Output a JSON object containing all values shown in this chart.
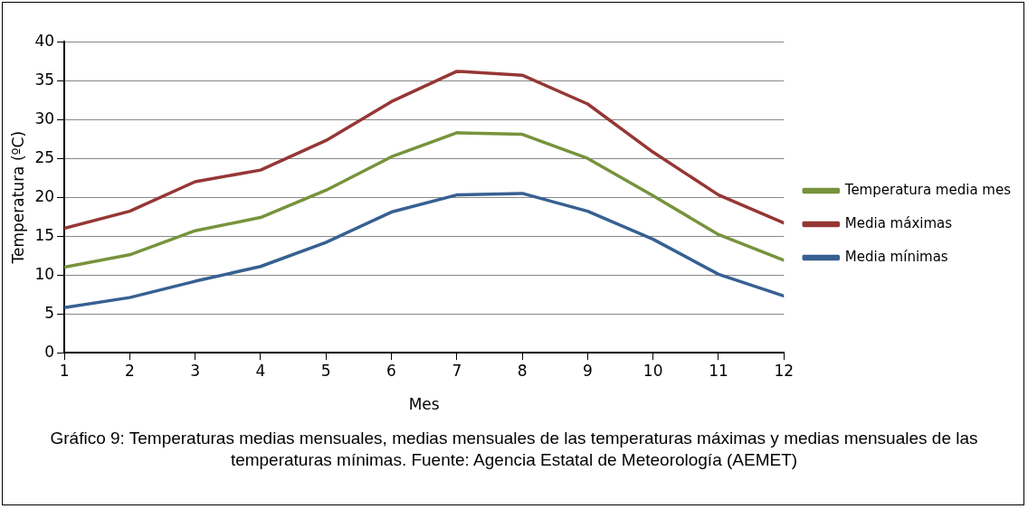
{
  "chart_data": {
    "type": "line",
    "xlabel": "Mes",
    "ylabel": "Temperatura (ºC)",
    "x": [
      1,
      2,
      3,
      4,
      5,
      6,
      7,
      8,
      9,
      10,
      11,
      12
    ],
    "xlim": [
      1,
      12
    ],
    "xticks": [
      1,
      2,
      3,
      4,
      5,
      6,
      7,
      8,
      9,
      10,
      11,
      12
    ],
    "ylim": [
      0,
      40
    ],
    "yticks": [
      0,
      5,
      10,
      15,
      20,
      25,
      30,
      35,
      40
    ],
    "grid": "y",
    "legend": "right",
    "marker": "none",
    "line_style": "solid",
    "series": [
      {
        "name": "Temperatura media mes",
        "color": "#77933c",
        "values": [
          11.0,
          12.6,
          15.7,
          17.4,
          20.9,
          25.2,
          28.3,
          28.1,
          25.0,
          20.2,
          15.2,
          11.9
        ]
      },
      {
        "name": "Media máximas",
        "color": "#953735",
        "values": [
          16.0,
          18.2,
          22.0,
          23.5,
          27.3,
          32.3,
          36.2,
          35.7,
          32.0,
          25.8,
          20.3,
          16.7
        ]
      },
      {
        "name": "Media mínimas",
        "color": "#376092",
        "values": [
          5.8,
          7.1,
          9.2,
          11.1,
          14.2,
          18.1,
          20.3,
          20.5,
          18.2,
          14.6,
          10.1,
          7.3
        ]
      }
    ],
    "annotations": [
      "Gráfico 9: Temperaturas medias mensuales, medias mensuales de las temperaturas máximas y medias mensuales de las temperaturas mínimas. Fuente: Agencia Estatal de Meteorología (AEMET)"
    ]
  }
}
